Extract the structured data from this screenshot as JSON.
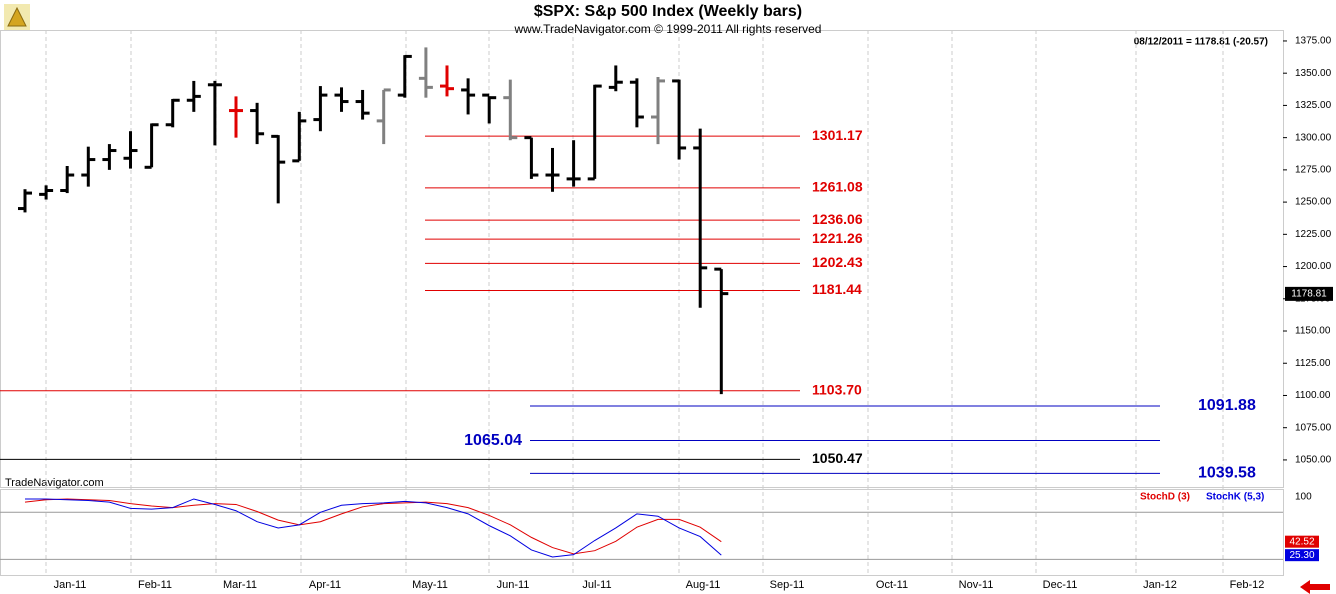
{
  "chart_data": {
    "type": "ohlc",
    "title": "$SPX:  S&p 500 Index  (Weekly bars)",
    "subtitle": "www.TradeNavigator.com © 1999-2011 All rights reserved",
    "quote": "08/12/2011 = 1178.81 (-20.57)",
    "last_price": 1178.81,
    "months": [
      "Jan-11",
      "Feb-11",
      "Mar-11",
      "Apr-11",
      "May-11",
      "Jun-11",
      "Jul-11",
      "Aug-11",
      "Sep-11",
      "Oct-11",
      "Nov-11",
      "Dec-11",
      "Jan-12",
      "Feb-12"
    ],
    "open": [
      1245,
      1256,
      1259,
      1271,
      1283,
      1284,
      1277,
      1310,
      1329,
      1341,
      1321,
      1321,
      1301,
      1282,
      1314,
      1333,
      1328,
      1313,
      1333,
      1346,
      1340,
      1337,
      1333,
      1331,
      1300,
      1271,
      1268,
      1268,
      1339,
      1343,
      1316,
      1344,
      1292,
      1198
    ],
    "high": [
      1260,
      1263,
      1278,
      1293,
      1295,
      1305,
      1311,
      1330,
      1344,
      1344,
      1332,
      1327,
      1302,
      1320,
      1340,
      1339,
      1337,
      1337,
      1364,
      1370,
      1356,
      1346,
      1332,
      1345,
      1300,
      1292,
      1298,
      1341,
      1356,
      1346,
      1347,
      1345,
      1307,
      1198
    ],
    "low": [
      1242,
      1252,
      1257,
      1262,
      1275,
      1276,
      1277,
      1308,
      1320,
      1294,
      1300,
      1295,
      1249,
      1282,
      1305,
      1320,
      1314,
      1295,
      1331,
      1331,
      1332,
      1318,
      1311,
      1298,
      1268,
      1258,
      1262,
      1268,
      1336,
      1308,
      1295,
      1283,
      1168,
      1101
    ],
    "close": [
      1257,
      1259,
      1271,
      1283,
      1290,
      1290,
      1310,
      1329,
      1332,
      1341,
      1321,
      1303,
      1281,
      1313,
      1333,
      1328,
      1319,
      1337,
      1363,
      1339,
      1338,
      1333,
      1331,
      1300,
      1271,
      1271,
      1268,
      1340,
      1343,
      1316,
      1344,
      1292,
      1199,
      1179
    ],
    "colors": [
      "#000",
      "#000",
      "#000",
      "#000",
      "#000",
      "#000",
      "#000",
      "#000",
      "#000",
      "#000",
      "#e00000",
      "#000",
      "#000",
      "#000",
      "#000",
      "#000",
      "#000",
      "#808080",
      "#000",
      "#808080",
      "#e00000",
      "#000",
      "#000",
      "#808080",
      "#000",
      "#000",
      "#000",
      "#000",
      "#000",
      "#000",
      "#808080",
      "#000",
      "#000",
      "#000"
    ],
    "ylim": [
      1029,
      1383.5
    ],
    "yticks": [
      {
        "value": 1050,
        "label": "1050.00"
      },
      {
        "value": 1075,
        "label": "1075.00"
      },
      {
        "value": 1100,
        "label": "1100.00"
      },
      {
        "value": 1125,
        "label": "1125.00"
      },
      {
        "value": 1150,
        "label": "1150.00"
      },
      {
        "value": 1175,
        "label": "1175.00"
      },
      {
        "value": 1200,
        "label": "1200.00"
      },
      {
        "value": 1225,
        "label": "1225.00"
      },
      {
        "value": 1250,
        "label": "1250.00"
      },
      {
        "value": 1275,
        "label": "1275.00"
      },
      {
        "value": 1300,
        "label": "1300.00"
      },
      {
        "value": 1325,
        "label": "1325.00"
      },
      {
        "value": 1350,
        "label": "1350.00"
      },
      {
        "value": 1375,
        "label": "1375.00"
      }
    ],
    "levels": {
      "values": [
        1301.17,
        1261.08,
        1236.06,
        1221.26,
        1202.43,
        1181.44,
        1103.7,
        1091.88,
        1065.04,
        1050.47,
        1039.58
      ],
      "value_labels": [
        "1301.17",
        "1261.08",
        "1236.06",
        "1221.26",
        "1202.43",
        "1181.44",
        "1103.70",
        "1091.88",
        "1065.04",
        "1050.47",
        "1039.58"
      ],
      "colors": [
        "#e00000",
        "#e00000",
        "#e00000",
        "#e00000",
        "#e00000",
        "#e00000",
        "#e00000",
        "#0000c0",
        "#0000c0",
        "#000000",
        "#0000c0"
      ]
    },
    "indicator": {
      "label": "TradeNavigator.com",
      "ylim": [
        0,
        111
      ],
      "yticks": [
        100
      ],
      "hlines": [
        80,
        20
      ],
      "series": [
        {
          "name": "StochD (3)",
          "color": "#e00000",
          "last_label": "42.52",
          "values": [
            93,
            96,
            97,
            96,
            95,
            91,
            88,
            86,
            89,
            91,
            90,
            81,
            70,
            64,
            68,
            78,
            87,
            91,
            92,
            93,
            91,
            86,
            76,
            64,
            48,
            35,
            27,
            31,
            43,
            61,
            71,
            71,
            61,
            42.52
          ]
        },
        {
          "name": "StochK (5,3)",
          "color": "#0000e0",
          "last_label": "25.30",
          "values": [
            97,
            97,
            96,
            95,
            93,
            85,
            84,
            86,
            97,
            90,
            82,
            68,
            60,
            64,
            80,
            89,
            91,
            92,
            94,
            92,
            86,
            78,
            63,
            50,
            32,
            23,
            26,
            44,
            60,
            78,
            75,
            60,
            49,
            25.3
          ]
        }
      ]
    }
  }
}
